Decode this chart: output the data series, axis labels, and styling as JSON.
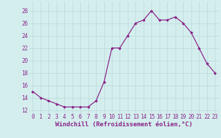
{
  "x": [
    0,
    1,
    2,
    3,
    4,
    5,
    6,
    7,
    8,
    9,
    10,
    11,
    12,
    13,
    14,
    15,
    16,
    17,
    18,
    19,
    20,
    21,
    22,
    23
  ],
  "y": [
    15,
    14,
    13.5,
    13,
    12.5,
    12.5,
    12.5,
    12.5,
    13.5,
    16.5,
    22,
    22,
    24,
    26,
    26.5,
    28,
    26.5,
    26.5,
    27,
    26,
    24.5,
    22,
    19.5,
    18
  ],
  "line_color": "#882288",
  "marker": "D",
  "marker_size": 1.8,
  "bg_color": "#d4eeee",
  "grid_color": "#b8d8d8",
  "xlabel": "Windchill (Refroidissement éolien,°C)",
  "xlabel_color": "#882288",
  "xlabel_fontsize": 6.5,
  "ylabel_ticks": [
    12,
    14,
    16,
    18,
    20,
    22,
    24,
    26,
    28
  ],
  "ylim": [
    11.5,
    29.5
  ],
  "xlim": [
    -0.5,
    23.5
  ],
  "tick_fontsize": 5.5,
  "tick_color": "#882288",
  "linewidth": 0.9
}
